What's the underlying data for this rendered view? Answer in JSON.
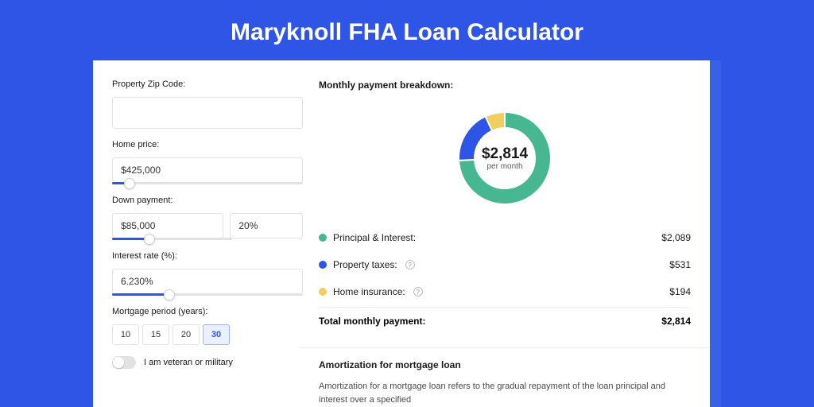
{
  "page": {
    "title": "Maryknoll FHA Loan Calculator",
    "background": "#2f55e6"
  },
  "form": {
    "zip": {
      "label": "Property Zip Code:",
      "value": ""
    },
    "home_price": {
      "label": "Home price:",
      "value": "$425,000",
      "slider_pct": 9
    },
    "down_payment": {
      "label": "Down payment:",
      "amount": "$85,000",
      "pct": "20%",
      "slider_pct": 20
    },
    "interest_rate": {
      "label": "Interest rate (%):",
      "value": "6.230%",
      "slider_pct": 30
    },
    "mortgage_period": {
      "label": "Mortgage period (years):",
      "options": [
        "10",
        "15",
        "20",
        "30"
      ],
      "selected_index": 3
    },
    "veteran": {
      "label": "I am veteran or military",
      "checked": false
    }
  },
  "breakdown": {
    "title": "Monthly payment breakdown:",
    "donut": {
      "amount": "$2,814",
      "sub": "per month",
      "slices": [
        {
          "label": "Principal & Interest:",
          "value": "$2,089",
          "color": "#47b792",
          "pct": 74.2,
          "has_info": false
        },
        {
          "label": "Property taxes:",
          "value": "$531",
          "color": "#2f55e6",
          "pct": 18.9,
          "has_info": true
        },
        {
          "label": "Home insurance:",
          "value": "$194",
          "color": "#f1ce5e",
          "pct": 6.9,
          "has_info": true
        }
      ]
    },
    "total_label": "Total monthly payment:",
    "total_value": "$2,814"
  },
  "amortization": {
    "title": "Amortization for mortgage loan",
    "body": "Amortization for a mortgage loan refers to the gradual repayment of the loan principal and interest over a specified"
  }
}
